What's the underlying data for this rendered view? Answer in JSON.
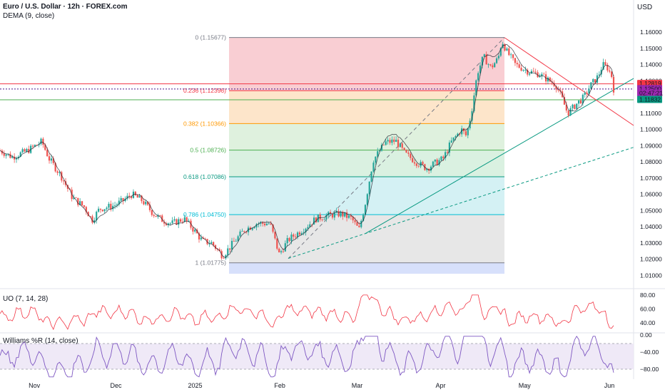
{
  "header": {
    "symbol_title": "Euro / U.S. Dollar · 12h · FOREX.com",
    "indicator_label": "DEMA (9, close)"
  },
  "currency_label": "USD",
  "colors": {
    "up": "#26a69a",
    "down": "#ef5350",
    "uo_line": "#f23645",
    "wr_line": "#7e57c2",
    "wr_fill": "#ede7f6",
    "dema": "#131722"
  },
  "chart_data": [
    {
      "type": "candlestick",
      "title": "Euro / U.S. Dollar · 12h · FOREX.com",
      "series_name": "EURUSD",
      "ylim": [
        1.004,
        1.1645
      ],
      "y_ticks": [
        1.16,
        1.15,
        1.14,
        1.13,
        1.12,
        1.11,
        1.1,
        1.09,
        1.08,
        1.07,
        1.06,
        1.05,
        1.04,
        1.03,
        1.02,
        1.01
      ],
      "y_tick_labels": [
        "1.16000",
        "1.15000",
        "1.14000",
        "1.13000",
        "1.12000",
        "1.11000",
        "1.10000",
        "1.09000",
        "1.08000",
        "1.07000",
        "1.06000",
        "1.05000",
        "1.04000",
        "1.03000",
        "1.02000",
        "1.01000"
      ],
      "x_ticks": [
        {
          "label": "Nov",
          "t": 0.056
        },
        {
          "label": "Dec",
          "t": 0.189
        },
        {
          "label": "2025",
          "t": 0.318
        },
        {
          "label": "Feb",
          "t": 0.456
        },
        {
          "label": "Mar",
          "t": 0.582
        },
        {
          "label": "Apr",
          "t": 0.718
        },
        {
          "label": "May",
          "t": 0.855
        },
        {
          "label": "Jun",
          "t": 0.993
        }
      ],
      "path_keypoints": [
        [
          0.0,
          1.087
        ],
        [
          0.02,
          1.083
        ],
        [
          0.045,
          1.087
        ],
        [
          0.068,
          1.0925
        ],
        [
          0.08,
          1.082
        ],
        [
          0.1,
          1.071
        ],
        [
          0.118,
          1.058
        ],
        [
          0.138,
          1.052
        ],
        [
          0.15,
          1.044
        ],
        [
          0.162,
          1.051
        ],
        [
          0.185,
          1.053
        ],
        [
          0.2,
          1.056
        ],
        [
          0.215,
          1.06
        ],
        [
          0.232,
          1.056
        ],
        [
          0.25,
          1.048
        ],
        [
          0.265,
          1.044
        ],
        [
          0.28,
          1.042
        ],
        [
          0.3,
          1.045
        ],
        [
          0.316,
          1.038
        ],
        [
          0.33,
          1.031
        ],
        [
          0.345,
          1.03
        ],
        [
          0.363,
          1.022
        ],
        [
          0.38,
          1.03
        ],
        [
          0.398,
          1.038
        ],
        [
          0.418,
          1.042
        ],
        [
          0.44,
          1.042
        ],
        [
          0.455,
          1.023
        ],
        [
          0.47,
          1.032
        ],
        [
          0.492,
          1.038
        ],
        [
          0.515,
          1.045
        ],
        [
          0.535,
          1.047
        ],
        [
          0.555,
          1.048
        ],
        [
          0.573,
          1.045
        ],
        [
          0.585,
          1.038
        ],
        [
          0.595,
          1.054
        ],
        [
          0.608,
          1.081
        ],
        [
          0.628,
          1.092
        ],
        [
          0.645,
          1.093
        ],
        [
          0.66,
          1.085
        ],
        [
          0.678,
          1.08
        ],
        [
          0.695,
          1.076
        ],
        [
          0.712,
          1.08
        ],
        [
          0.722,
          1.082
        ],
        [
          0.735,
          1.092
        ],
        [
          0.752,
          1.1
        ],
        [
          0.76,
          1.096
        ],
        [
          0.768,
          1.11
        ],
        [
          0.778,
          1.135
        ],
        [
          0.788,
          1.145
        ],
        [
          0.8,
          1.138
        ],
        [
          0.812,
          1.144
        ],
        [
          0.818,
          1.155
        ],
        [
          0.826,
          1.148
        ],
        [
          0.84,
          1.14
        ],
        [
          0.86,
          1.136
        ],
        [
          0.88,
          1.134
        ],
        [
          0.895,
          1.13
        ],
        [
          0.905,
          1.128
        ],
        [
          0.915,
          1.12
        ],
        [
          0.925,
          1.11
        ],
        [
          0.94,
          1.116
        ],
        [
          0.952,
          1.12
        ],
        [
          0.962,
          1.127
        ],
        [
          0.975,
          1.133
        ],
        [
          0.982,
          1.14
        ],
        [
          0.99,
          1.138
        ],
        [
          0.998,
          1.132
        ],
        [
          1.0,
          1.125
        ]
      ],
      "fibonacci": {
        "high_price": 1.15677,
        "low_price": 1.01775,
        "levels": [
          {
            "label": "0 (1.15677)",
            "price": 1.15677,
            "color": "#787b86",
            "fill": "#f8c6cb"
          },
          {
            "label": "0.236 (1.12396)",
            "price": 1.12396,
            "color": "#f23645",
            "fill": "#fde0c1"
          },
          {
            "label": "0.382 (1.10366)",
            "price": 1.10366,
            "color": "#ff9800",
            "fill": "#d9efd8"
          },
          {
            "label": "0.5 (1.08726)",
            "price": 1.08726,
            "color": "#4caf50",
            "fill": "#d4eedc"
          },
          {
            "label": "0.618 (1.07086)",
            "price": 1.07086,
            "color": "#089981",
            "fill": "#cdeff2"
          },
          {
            "label": "0.786 (1.04750)",
            "price": 1.0475,
            "color": "#00bcd4",
            "fill": "#e3e3e3"
          },
          {
            "label": "1 (1.01775)",
            "price": 1.01775,
            "color": "#787b86",
            "fill": "#d3ddfb"
          }
        ],
        "extension_fill": "#d3ddfb",
        "extension_price": 1.011
      },
      "horizontal_lines": [
        {
          "price": 1.12819,
          "color": "#f23645"
        },
        {
          "price": 1.125,
          "color": "#4a148c",
          "dashed": true
        },
        {
          "price": 1.11832,
          "color": "#4caf50"
        }
      ],
      "price_labels": [
        {
          "text": "1.12819",
          "price": 1.12819,
          "bg": "#f23645"
        },
        {
          "text": "1.12500",
          "price": 1.125,
          "bg": "#9c27b0"
        },
        {
          "text": "02:47:21",
          "price": 1.1235,
          "bg": "#9c27b0"
        },
        {
          "text": "1.11832",
          "price": 1.11832,
          "bg": "#089981"
        }
      ]
    },
    {
      "type": "line",
      "title": "UO (7, 14, 28)",
      "series_name": "UO",
      "ylim": [
        28,
        84
      ],
      "y_ticks": [
        80,
        60,
        40
      ],
      "y_tick_labels": [
        "80.00",
        "60.00",
        "40.00"
      ]
    },
    {
      "type": "line",
      "title": "Williams %R (14, close)",
      "series_name": "Williams %R",
      "ylim": [
        -100,
        0
      ],
      "y_ticks": [
        0,
        -40,
        -80
      ],
      "y_tick_labels": [
        "0.00",
        "−40.00",
        "−80.00"
      ],
      "bands": [
        -20,
        -80
      ]
    }
  ]
}
